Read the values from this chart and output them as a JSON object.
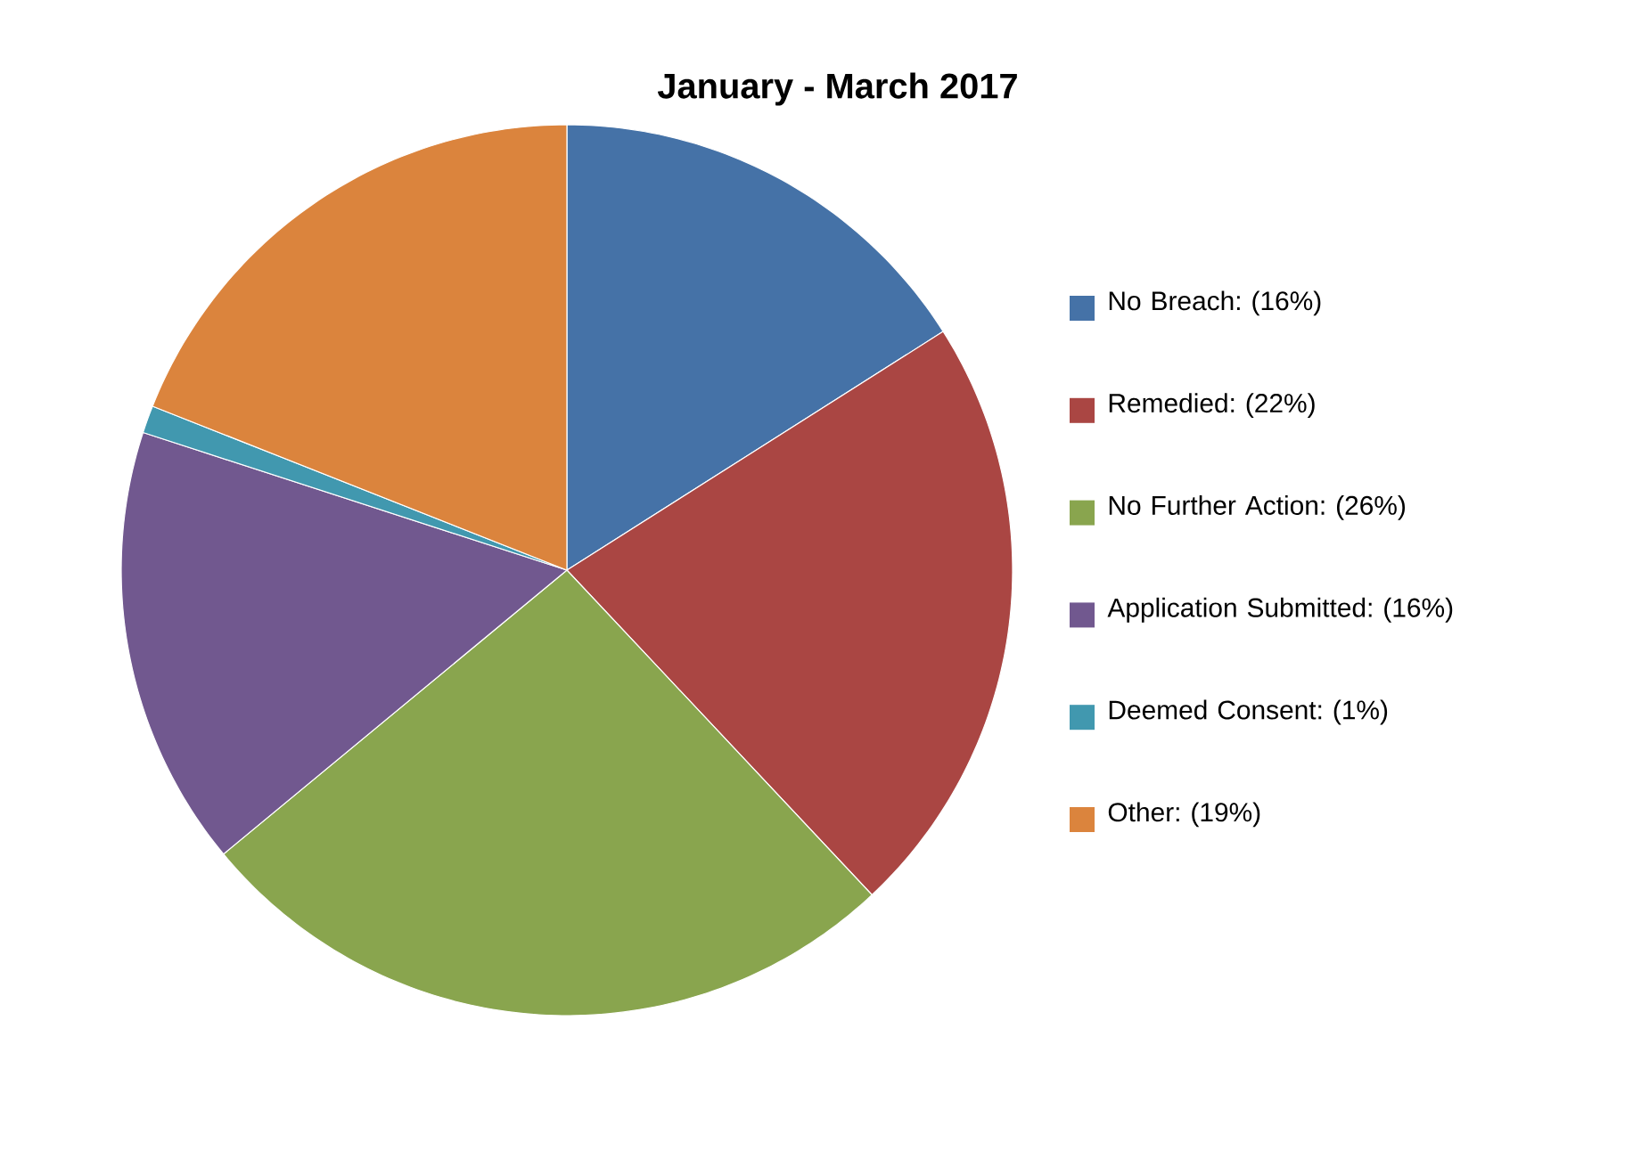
{
  "chart_data": {
    "type": "pie",
    "title": "January - March 2017",
    "categories": [
      "No Breach: (16%)",
      "Remedied: (22%)",
      "No Further Action: (26%)",
      "Application Submitted: (16%)",
      "Deemed Consent:  (1%)",
      "Other: (19%)"
    ],
    "values": [
      16,
      22,
      26,
      16,
      1,
      19
    ],
    "colors": [
      "#4572a7",
      "#aa4643",
      "#89a54e",
      "#71588f",
      "#4198af",
      "#db843d"
    ],
    "legend": "right"
  }
}
